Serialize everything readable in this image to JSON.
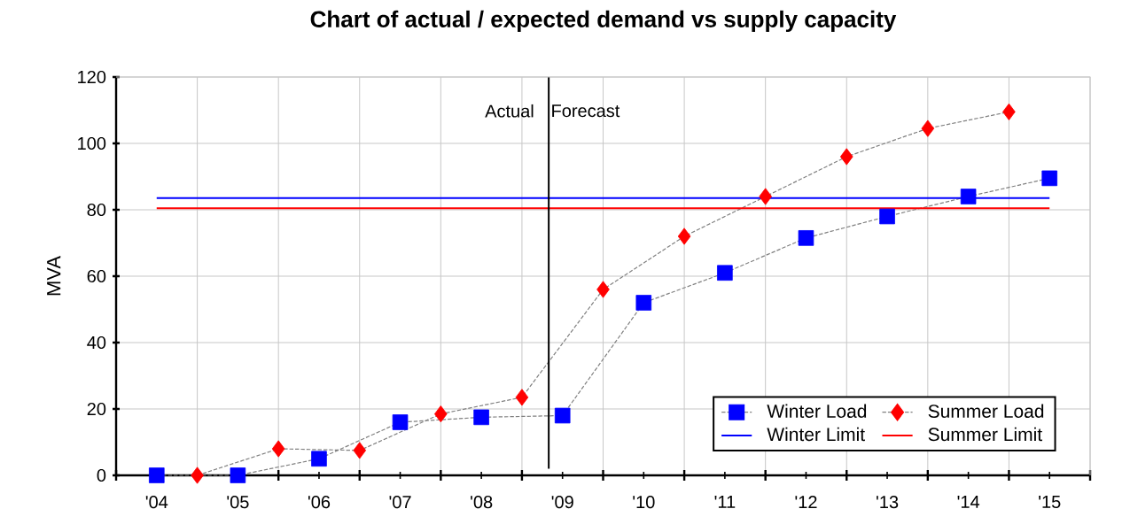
{
  "chart_data": {
    "type": "line",
    "title": "Chart of actual / expected demand vs supply capacity",
    "ylabel": "MVA",
    "xlim": [
      2003.5,
      2015.5
    ],
    "xticks": [
      {
        "value": 2003.5,
        "label": null
      },
      {
        "value": 2004,
        "label": "'04"
      },
      {
        "value": 2004.5,
        "label": null
      },
      {
        "value": 2005,
        "label": "'05"
      },
      {
        "value": 2005.5,
        "label": null
      },
      {
        "value": 2006,
        "label": "'06"
      },
      {
        "value": 2006.5,
        "label": null
      },
      {
        "value": 2007,
        "label": "'07"
      },
      {
        "value": 2007.5,
        "label": null
      },
      {
        "value": 2008,
        "label": "'08"
      },
      {
        "value": 2008.5,
        "label": null
      },
      {
        "value": 2009,
        "label": "'09"
      },
      {
        "value": 2009.5,
        "label": null
      },
      {
        "value": 2010,
        "label": "'10"
      },
      {
        "value": 2010.5,
        "label": null
      },
      {
        "value": 2011,
        "label": "'11"
      },
      {
        "value": 2011.5,
        "label": null
      },
      {
        "value": 2012,
        "label": "'12"
      },
      {
        "value": 2012.5,
        "label": null
      },
      {
        "value": 2013,
        "label": "'13"
      },
      {
        "value": 2013.5,
        "label": null
      },
      {
        "value": 2014,
        "label": "'14"
      },
      {
        "value": 2014.5,
        "label": null
      },
      {
        "value": 2015,
        "label": "'15"
      },
      {
        "value": 2015.5,
        "label": null
      }
    ],
    "ylim": [
      0,
      120
    ],
    "yticks": [
      0,
      20,
      40,
      60,
      80,
      100,
      120
    ],
    "grid": true,
    "legend": "bottom right",
    "series": [
      {
        "name": "Winter Load",
        "color": "#0000ff",
        "marker": "square",
        "line_style": "dashed",
        "x": [
          2004,
          2005,
          2006,
          2007,
          2008,
          2009,
          2010,
          2011,
          2012,
          2013,
          2014,
          2015
        ],
        "values": [
          0,
          0,
          5,
          16,
          17.5,
          18,
          52,
          61,
          71.5,
          78,
          84,
          89.5
        ]
      },
      {
        "name": "Summer Load",
        "color": "#ff0000",
        "marker": "diamond",
        "line_style": "dashed",
        "x": [
          2004.5,
          2005.5,
          2006.5,
          2007.5,
          2008.5,
          2009.5,
          2010.5,
          2011.5,
          2012.5,
          2013.5,
          2014.5
        ],
        "values": [
          0,
          8,
          7.5,
          18.5,
          23.5,
          56,
          72,
          84,
          96,
          104.5,
          109.5
        ]
      },
      {
        "name": "Winter Limit",
        "color": "#0000ff",
        "marker": "none",
        "line_style": "solid",
        "x": [
          2004,
          2015
        ],
        "values": [
          83.5,
          83.5
        ]
      },
      {
        "name": "Summer Limit",
        "color": "#ff0000",
        "marker": "none",
        "line_style": "solid",
        "x": [
          2004,
          2015
        ],
        "values": [
          80.5,
          80.5
        ]
      }
    ],
    "ref_lines": [
      {
        "axis": "x",
        "value": 2008.83,
        "color": "#000000",
        "label": "Forecast"
      }
    ],
    "annotations": [
      "Actual"
    ]
  }
}
